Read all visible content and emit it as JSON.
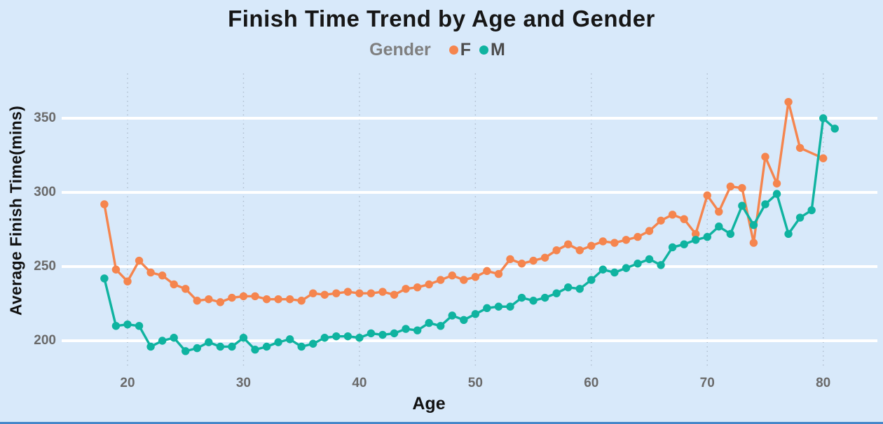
{
  "title": "Finish Time Trend by Age and Gender",
  "legend": {
    "title": "Gender",
    "items": [
      {
        "label": "F",
        "color": "#f5854e"
      },
      {
        "label": "M",
        "color": "#0fb3a0"
      }
    ]
  },
  "chart_data": {
    "type": "line",
    "title": "Finish Time Trend by Age and Gender",
    "x_label": "Age",
    "y_label": "Average Finish Time(mins)",
    "x_ticks": [
      20,
      30,
      40,
      50,
      60,
      70,
      80
    ],
    "y_ticks": [
      200,
      250,
      300,
      350
    ],
    "x_range": [
      18,
      81
    ],
    "y_range": [
      180,
      382
    ],
    "legend_position": "top",
    "grid": {
      "horizontal": "solid-white",
      "vertical": "dotted"
    },
    "series": [
      {
        "name": "F",
        "color": "#f5854e",
        "points": [
          [
            18,
            292
          ],
          [
            19,
            248
          ],
          [
            20,
            240
          ],
          [
            21,
            254
          ],
          [
            22,
            246
          ],
          [
            23,
            244
          ],
          [
            24,
            238
          ],
          [
            25,
            235
          ],
          [
            26,
            227
          ],
          [
            27,
            228
          ],
          [
            28,
            226
          ],
          [
            29,
            229
          ],
          [
            30,
            230
          ],
          [
            31,
            230
          ],
          [
            32,
            228
          ],
          [
            33,
            228
          ],
          [
            34,
            228
          ],
          [
            35,
            227
          ],
          [
            36,
            232
          ],
          [
            37,
            231
          ],
          [
            38,
            232
          ],
          [
            39,
            233
          ],
          [
            40,
            232
          ],
          [
            41,
            232
          ],
          [
            42,
            233
          ],
          [
            43,
            231
          ],
          [
            44,
            235
          ],
          [
            45,
            236
          ],
          [
            46,
            238
          ],
          [
            47,
            241
          ],
          [
            48,
            244
          ],
          [
            49,
            241
          ],
          [
            50,
            243
          ],
          [
            51,
            247
          ],
          [
            52,
            245
          ],
          [
            53,
            255
          ],
          [
            54,
            252
          ],
          [
            55,
            254
          ],
          [
            56,
            256
          ],
          [
            57,
            261
          ],
          [
            58,
            265
          ],
          [
            59,
            261
          ],
          [
            60,
            264
          ],
          [
            61,
            267
          ],
          [
            62,
            266
          ],
          [
            63,
            268
          ],
          [
            64,
            270
          ],
          [
            65,
            274
          ],
          [
            66,
            281
          ],
          [
            67,
            285
          ],
          [
            68,
            282
          ],
          [
            69,
            272
          ],
          [
            70,
            298
          ],
          [
            71,
            287
          ],
          [
            72,
            304
          ],
          [
            73,
            303
          ],
          [
            74,
            266
          ],
          [
            75,
            324
          ],
          [
            76,
            306
          ],
          [
            77,
            361
          ],
          [
            78,
            330
          ],
          [
            80,
            323
          ]
        ]
      },
      {
        "name": "M",
        "color": "#0fb3a0",
        "points": [
          [
            18,
            242
          ],
          [
            19,
            210
          ],
          [
            20,
            211
          ],
          [
            21,
            210
          ],
          [
            22,
            196
          ],
          [
            23,
            200
          ],
          [
            24,
            202
          ],
          [
            25,
            193
          ],
          [
            26,
            195
          ],
          [
            27,
            199
          ],
          [
            28,
            196
          ],
          [
            29,
            196
          ],
          [
            30,
            202
          ],
          [
            31,
            194
          ],
          [
            32,
            196
          ],
          [
            33,
            199
          ],
          [
            34,
            201
          ],
          [
            35,
            196
          ],
          [
            36,
            198
          ],
          [
            37,
            202
          ],
          [
            38,
            203
          ],
          [
            39,
            203
          ],
          [
            40,
            202
          ],
          [
            41,
            205
          ],
          [
            42,
            204
          ],
          [
            43,
            205
          ],
          [
            44,
            208
          ],
          [
            45,
            207
          ],
          [
            46,
            212
          ],
          [
            47,
            210
          ],
          [
            48,
            217
          ],
          [
            49,
            214
          ],
          [
            50,
            218
          ],
          [
            51,
            222
          ],
          [
            52,
            223
          ],
          [
            53,
            223
          ],
          [
            54,
            229
          ],
          [
            55,
            227
          ],
          [
            56,
            229
          ],
          [
            57,
            232
          ],
          [
            58,
            236
          ],
          [
            59,
            235
          ],
          [
            60,
            241
          ],
          [
            61,
            248
          ],
          [
            62,
            246
          ],
          [
            63,
            249
          ],
          [
            64,
            252
          ],
          [
            65,
            255
          ],
          [
            66,
            251
          ],
          [
            67,
            263
          ],
          [
            68,
            265
          ],
          [
            69,
            268
          ],
          [
            70,
            270
          ],
          [
            71,
            277
          ],
          [
            72,
            272
          ],
          [
            73,
            291
          ],
          [
            74,
            278
          ],
          [
            75,
            292
          ],
          [
            76,
            299
          ],
          [
            77,
            272
          ],
          [
            78,
            283
          ],
          [
            79,
            288
          ],
          [
            80,
            350
          ],
          [
            81,
            343
          ]
        ]
      }
    ]
  }
}
